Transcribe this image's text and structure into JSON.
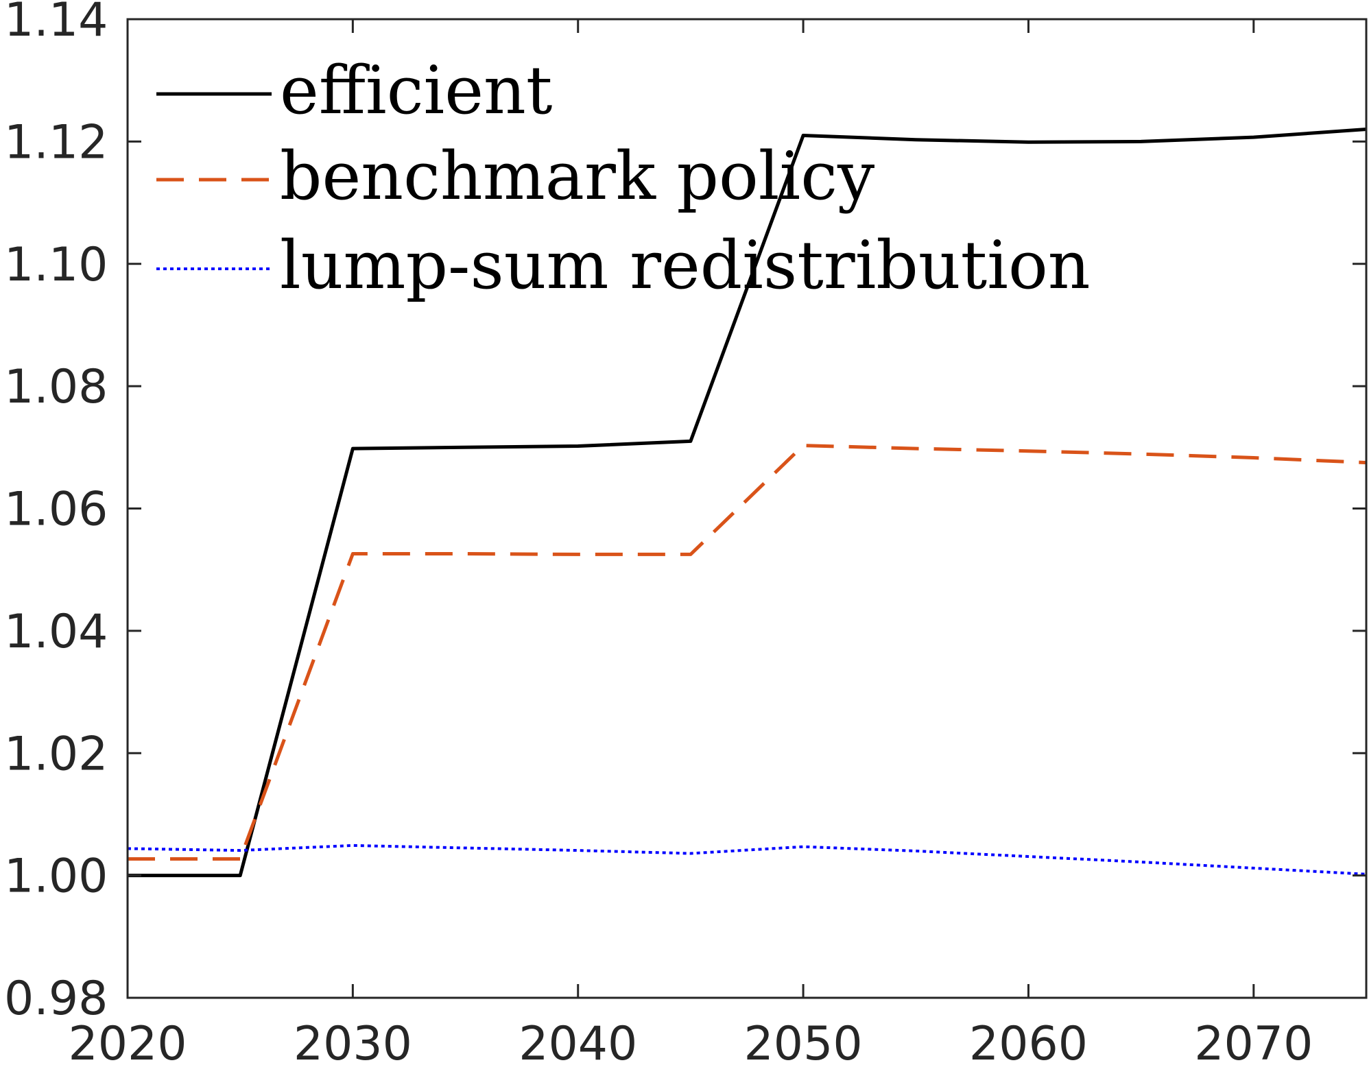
{
  "chart_data": {
    "type": "line",
    "title": "",
    "xlabel": "",
    "ylabel": "",
    "xlim": [
      2020,
      2075
    ],
    "ylim": [
      0.98,
      1.14
    ],
    "x_ticks": [
      2020,
      2030,
      2040,
      2050,
      2060,
      2070
    ],
    "y_ticks": [
      0.98,
      1.0,
      1.02,
      1.04,
      1.06,
      1.08,
      1.1,
      1.12,
      1.14
    ],
    "x_tick_labels": [
      "2020",
      "2030",
      "2040",
      "2050",
      "2060",
      "2070"
    ],
    "y_tick_labels": [
      "0.98",
      "1.00",
      "1.02",
      "1.04",
      "1.06",
      "1.08",
      "1.10",
      "1.12",
      "1.14"
    ],
    "grid": false,
    "legend_position": "top-left",
    "x": [
      2020,
      2025,
      2030,
      2035,
      2040,
      2045,
      2050,
      2055,
      2060,
      2065,
      2070,
      2075
    ],
    "series": [
      {
        "name": "efficient",
        "color": "#000000",
        "style": "solid",
        "values": [
          1.0,
          1.0,
          1.0698,
          1.07,
          1.0702,
          1.071,
          1.121,
          1.1203,
          1.1199,
          1.12,
          1.1207,
          1.122
        ]
      },
      {
        "name": "benchmark policy",
        "color": "#D95319",
        "style": "dashed",
        "values": [
          1.0027,
          1.0027,
          1.0526,
          1.0526,
          1.0525,
          1.0525,
          1.0703,
          1.0698,
          1.0694,
          1.0689,
          1.0683,
          1.0675
        ]
      },
      {
        "name": "lump-sum redistribution",
        "color": "#0000FF",
        "style": "dotted",
        "values": [
          1.0044,
          1.0041,
          1.0049,
          1.0045,
          1.0041,
          1.0036,
          1.0047,
          1.004,
          1.0031,
          1.0022,
          1.0012,
          1.0002
        ]
      }
    ]
  }
}
